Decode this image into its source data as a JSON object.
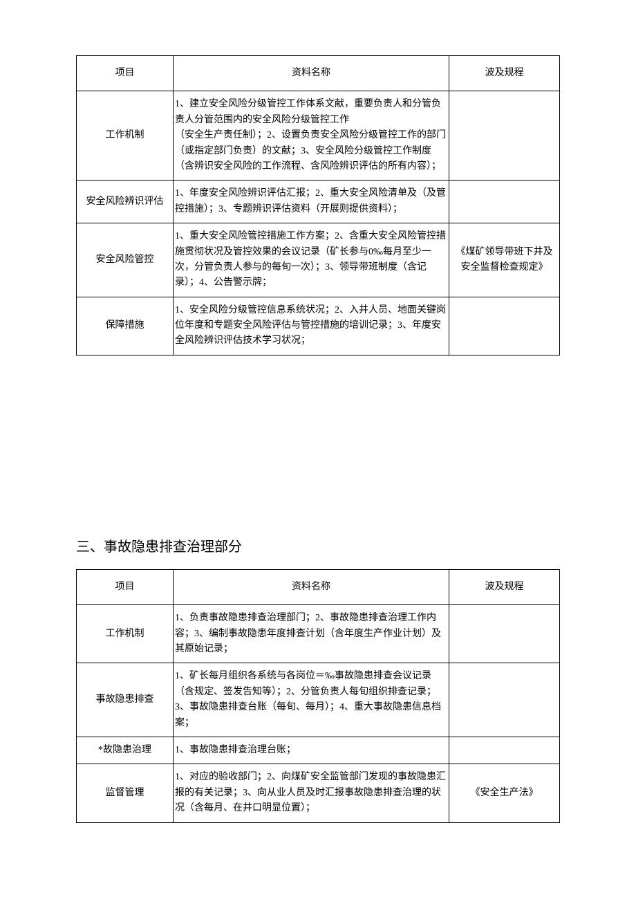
{
  "table1": {
    "headers": {
      "project": "项目",
      "material": "资料名称",
      "regulation": "波及规程"
    },
    "rows": [
      {
        "project": "工作机制",
        "material": "1、建立安全风险分级管控工作体系文献，重要负责人和分管负责人分管范围内的安全风险分级管控工作\n （安全生产责任制）；2、设置负责安全风险分级管控工作的部门（或指定部门负责）的文献；3、安全风险分级管控工作制度（含辨识安全风险的工作流程、含风险辨识评估的所有内容）；",
        "regulation": ""
      },
      {
        "project": "安全风险辨识评估",
        "material": "1、年度安全风险辨识评估汇报；2、重大安全风险清单及（及管控措施）；3、专题辨识评估资料（开展则提供资料）；",
        "regulation": ""
      },
      {
        "project": "安全风险管控",
        "material": "1、重大安全风险管控措施工作方案；2、含重大安全风险管控措施贯彻状况及管控效果的会议记录（矿长参与0‰每月至少一次，分管负责人参与的每旬一次）；3、领导带班制度（含记录）；4、公告警示牌；",
        "regulation": "《煤矿领导带班下井及安全监督检查规定》"
      },
      {
        "project": "保障措施",
        "material": "1、安全风险分级管控信息系统状况；2、入井人员、地面关键岗位年度和专题安全风险评估与管控措施的培训记录；3、年度安全风险辨识评估技术学习状况；",
        "regulation": ""
      }
    ]
  },
  "section2": {
    "title": "三、事故隐患排查治理部分"
  },
  "table2": {
    "headers": {
      "project": "项目",
      "material": "资料名称",
      "regulation": "波及规程"
    },
    "rows": [
      {
        "project": "工作机制",
        "material": "1、负责事故隐患排查治理部门；2、事故隐患排查治理工作内容；3、编制事故隐患年度排查计划（含年度生产作业计划）及其原始记录；",
        "regulation": ""
      },
      {
        "project": "事故隐患排查",
        "material": "1、矿长每月组织各系统与各岗位＝‰事故隐患排查会议记录（含规定、签发告知等）；2、分管负责人每旬组织排查记录；3、事故隐患排查台账（每旬、每月）；4、重大事故隐患信息档案；",
        "regulation": ""
      },
      {
        "project": "*故隐患治理",
        "material": "1、事故隐患排查治理台账；",
        "regulation": ""
      },
      {
        "project": "监督管理",
        "material": "1、对应的验收部门；2、向煤矿安全监管部门发现的事故隐患汇报的有关记录；3、向从业人员及时汇报事故隐患排查治理的状况（含每月、在井口明显位置）；",
        "regulation": "《安全生产法》"
      }
    ]
  }
}
